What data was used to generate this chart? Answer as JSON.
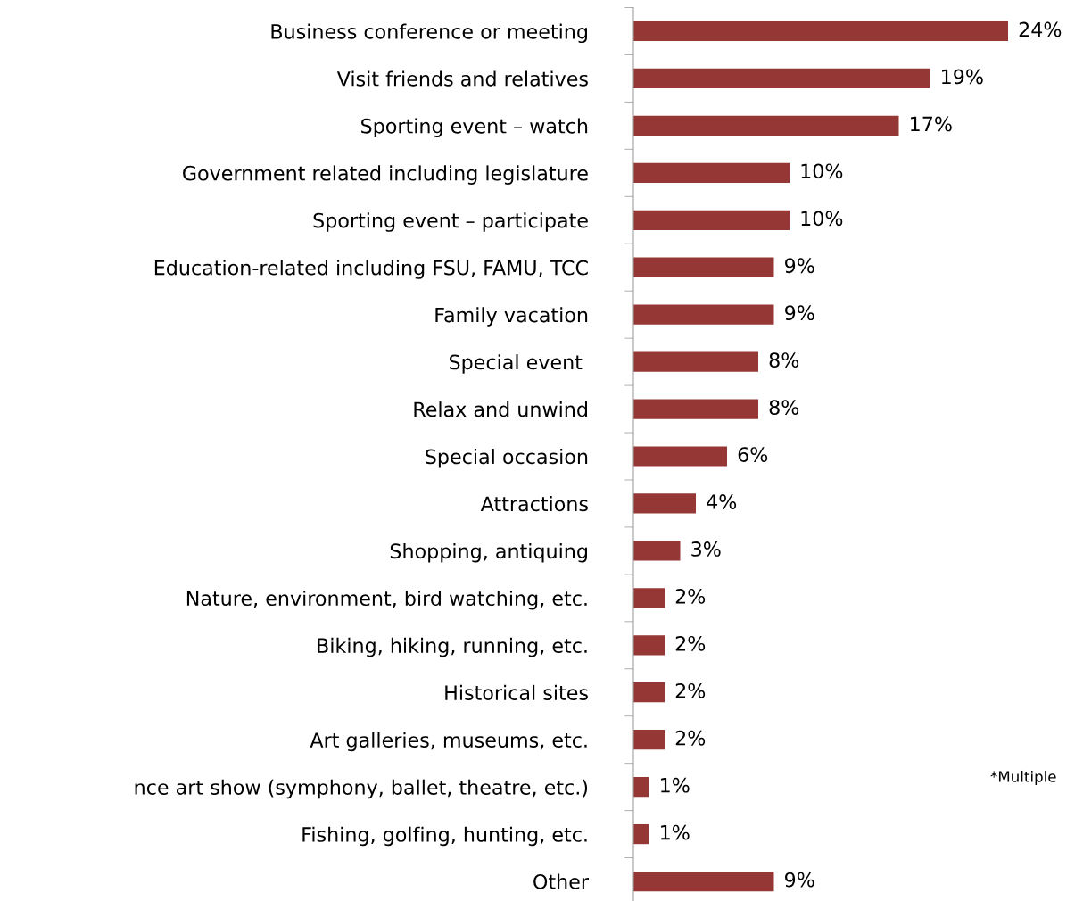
{
  "chart_data": {
    "type": "bar",
    "orientation": "horizontal",
    "categories": [
      "Business conference or meeting",
      "Visit friends and relatives",
      "Sporting event – watch",
      "Government related including legislature",
      "Sporting event – participate",
      "Education-related including FSU, FAMU, TCC",
      "Family vacation",
      "Special event ",
      "Relax and unwind",
      "Special occasion",
      "Attractions",
      "Shopping, antiquing",
      "Nature, environment, bird watching, etc.",
      "Biking, hiking, running, etc.",
      "Historical sites",
      "Art galleries, museums, etc.",
      "nce art show (symphony, ballet, theatre, etc.)",
      "Fishing, golfing, hunting, etc.",
      "Other"
    ],
    "values": [
      24,
      19,
      17,
      10,
      10,
      9,
      9,
      8,
      8,
      6,
      4,
      3,
      2,
      2,
      2,
      2,
      1,
      1,
      9
    ],
    "value_labels": [
      "24%",
      "19%",
      "17%",
      "10%",
      "10%",
      "9%",
      "9%",
      "8%",
      "8%",
      "6%",
      "4%",
      "3%",
      "2%",
      "2%",
      "2%",
      "2%",
      "1%",
      "1%",
      "9%"
    ],
    "color": "#953735",
    "annotations": [
      "*Multiple"
    ]
  }
}
